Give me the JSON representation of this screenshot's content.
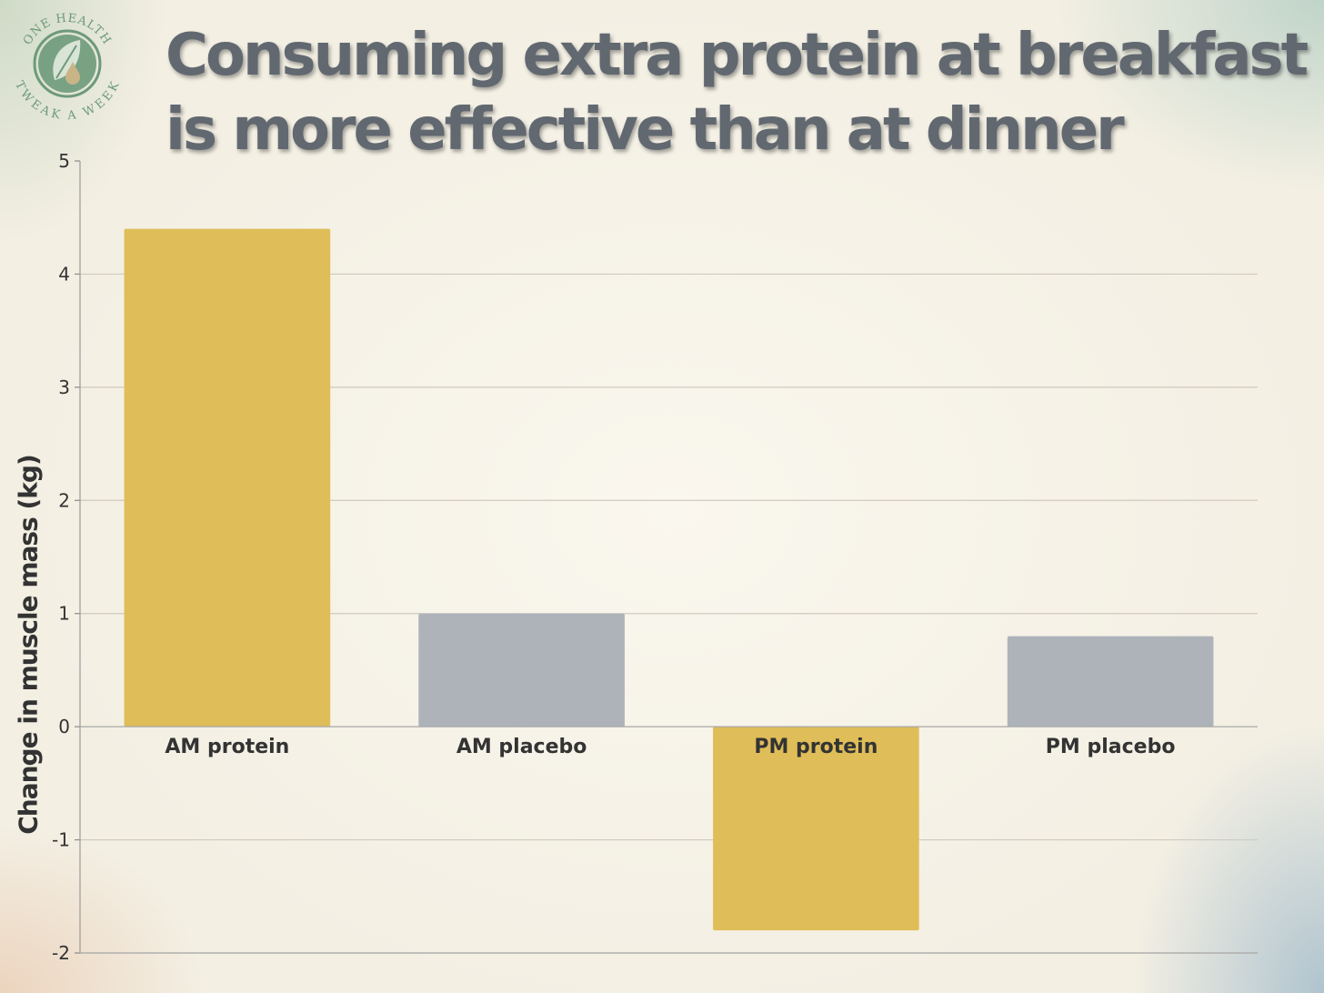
{
  "logo": {
    "top_text": "ONE HEALTH",
    "bottom_text": "TWEAK A WEEK",
    "ring_color": "#6d9a7a",
    "leaf_color": "#5a8f6b",
    "drop_color": "#b9a57a"
  },
  "chart_data": {
    "type": "bar",
    "title_lines": [
      "Consuming extra protein at breakfast",
      "is more effective than at dinner"
    ],
    "ylabel": "Change in muscle mass (kg)",
    "xlabel": "",
    "categories": [
      "AM protein",
      "AM placebo",
      "PM protein",
      "PM placebo"
    ],
    "values": [
      4.4,
      1.0,
      -1.8,
      0.8
    ],
    "bar_colors": [
      "#dfbd58",
      "#adb3b9",
      "#dfbd58",
      "#adb3b9"
    ],
    "ylim": [
      -2,
      5
    ],
    "yticks": [
      5,
      4,
      3,
      2,
      1,
      0,
      -1,
      -2
    ],
    "grid": true,
    "legend": "none"
  }
}
